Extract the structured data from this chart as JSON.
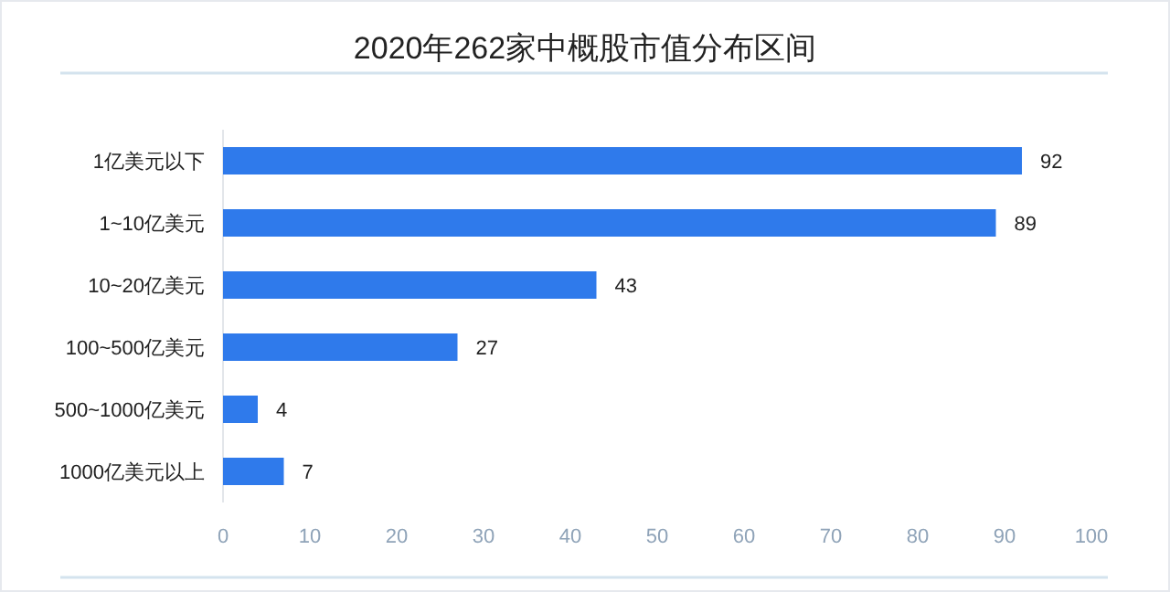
{
  "chart_data": {
    "type": "bar",
    "title": "2020年262家中概股市值分布区间",
    "orientation": "horizontal",
    "categories": [
      "1亿美元以下",
      "1~10亿美元",
      "10~20亿美元",
      "100~500亿美元",
      "500~1000亿美元",
      "1000亿美元以上"
    ],
    "values": [
      92,
      89,
      43,
      27,
      4,
      7
    ],
    "color": "#2f7aeb",
    "xlim": [
      0,
      100
    ],
    "xticks": [
      0,
      10,
      20,
      30,
      40,
      50,
      60,
      70,
      80,
      90,
      100
    ],
    "data_labels": true
  }
}
